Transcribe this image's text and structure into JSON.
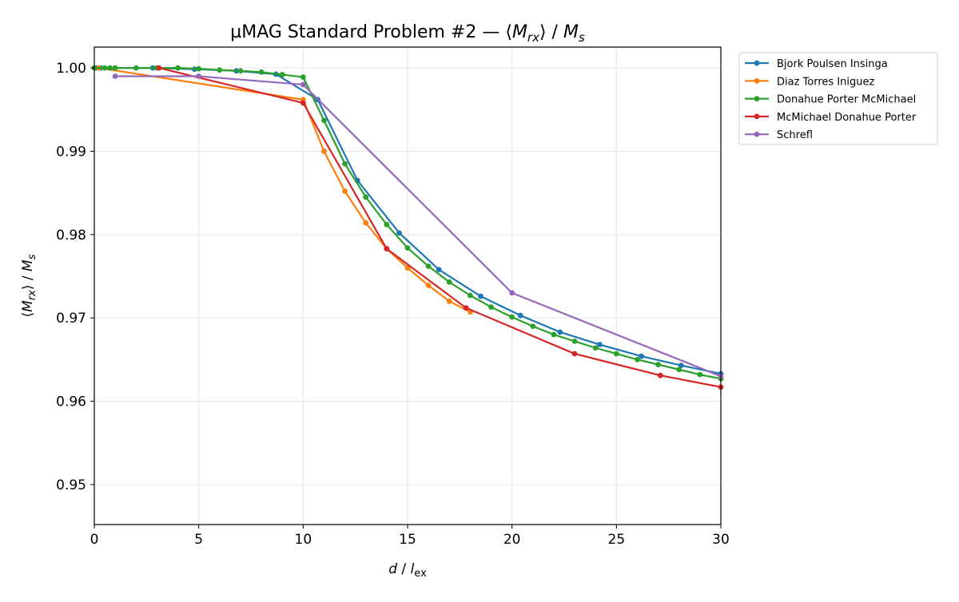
{
  "chart_data": {
    "type": "line",
    "title": "µMAG Standard Problem #2 — ⟨Mrx⟩ / Ms",
    "title_parts": {
      "prefix": "µMAG Standard Problem #2 — ⟨",
      "M": "M",
      "rx": "rx",
      "mid": "⟩ / ",
      "M2": "M",
      "s": "s"
    },
    "xlabel": "d / lex",
    "ylabel": "⟨Mrx⟩ / Ms",
    "xlim": [
      0,
      30
    ],
    "ylim": [
      0.9452,
      1.0025
    ],
    "x_ticks": [
      "0",
      "5",
      "10",
      "15",
      "20",
      "25",
      "30"
    ],
    "y_ticks": [
      "0.95",
      "0.96",
      "0.97",
      "0.98",
      "0.99",
      "1.00"
    ],
    "grid": true,
    "legend_position": "outside-top-right",
    "series": [
      {
        "name": "Bjork Poulsen Insinga",
        "color": "#1f77b4",
        "x": [
          0.1,
          0.3,
          2.8,
          4.8,
          6.8,
          8.7,
          10.7,
          12.6,
          14.6,
          16.5,
          18.5,
          20.4,
          22.3,
          24.2,
          26.2,
          28.1,
          30.0
        ],
        "y": [
          1.0,
          1.0,
          1.0,
          0.99985,
          0.99965,
          0.99925,
          0.9962,
          0.9865,
          0.9802,
          0.9758,
          0.9726,
          0.9703,
          0.9683,
          0.9668,
          0.9654,
          0.9643,
          0.9633
        ]
      },
      {
        "name": "Diaz Torres Iniguez",
        "color": "#ff7f0e",
        "x": [
          0.2,
          10.0,
          11.0,
          12.0,
          13.0,
          14.0,
          15.0,
          16.0,
          17.0,
          18.0
        ],
        "y": [
          1.0,
          0.9962,
          0.99,
          0.9852,
          0.9814,
          0.9783,
          0.976,
          0.9739,
          0.972,
          0.9707
        ]
      },
      {
        "name": "Donahue Porter McMichael",
        "color": "#2ca02c",
        "x": [
          0.0,
          0.5,
          0.75,
          1.0,
          2.0,
          3.0,
          4.0,
          5.0,
          6.0,
          7.0,
          8.0,
          9.0,
          10.0,
          11.0,
          12.0,
          13.0,
          14.0,
          15.0,
          16.0,
          17.0,
          18.0,
          19.0,
          20.0,
          21.0,
          22.0,
          23.0,
          24.0,
          25.0,
          26.0,
          27.0,
          28.0,
          29.0,
          30.0
        ],
        "y": [
          1.0,
          1.0,
          1.0,
          1.0,
          1.0,
          1.0,
          1.0,
          0.9999,
          0.99975,
          0.99965,
          0.9995,
          0.9992,
          0.9989,
          0.9937,
          0.9885,
          0.9845,
          0.9812,
          0.9784,
          0.9762,
          0.9743,
          0.9727,
          0.9713,
          0.9701,
          0.969,
          0.968,
          0.9672,
          0.9664,
          0.9657,
          0.965,
          0.9644,
          0.9638,
          0.9632,
          0.9627
        ]
      },
      {
        "name": "McMichael Donahue Porter",
        "color": "#d62728",
        "x": [
          3.1,
          10.0,
          14.0,
          17.8,
          23.0,
          27.1,
          30.0
        ],
        "y": [
          1.0,
          0.9958,
          0.9783,
          0.9712,
          0.9657,
          0.9631,
          0.9617
        ]
      },
      {
        "name": "Schrefl",
        "color": "#9467bd",
        "x": [
          1.0,
          5.0,
          10.0,
          20.0,
          30.0
        ],
        "y": [
          0.999,
          0.999,
          0.998,
          0.973,
          0.963
        ]
      }
    ]
  }
}
